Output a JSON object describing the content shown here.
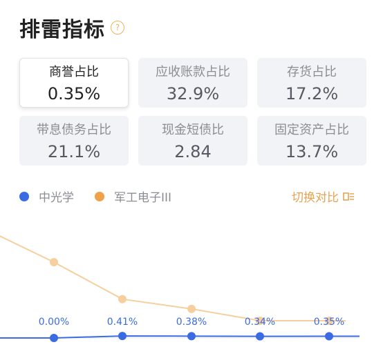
{
  "header": {
    "title": "排雷指标",
    "help_icon": "?"
  },
  "metrics": [
    {
      "label": "商誉占比",
      "value": "0.35%",
      "active": true
    },
    {
      "label": "应收账款占比",
      "value": "32.9%"
    },
    {
      "label": "存货占比",
      "value": "17.2%"
    },
    {
      "label": "带息债务占比",
      "value": "21.1%"
    },
    {
      "label": "现金短债比",
      "value": "2.84"
    },
    {
      "label": "固定资产占比",
      "value": "13.7%"
    }
  ],
  "legend": {
    "series_a": {
      "name": "中光学",
      "color": "#3a6be3"
    },
    "series_b": {
      "name": "军工电子III",
      "color": "#f0a24a"
    },
    "switch_label": "切换对比"
  },
  "chart_data": {
    "type": "line",
    "series": [
      {
        "name": "中光学",
        "values": [
          0,
          0.0,
          0.41,
          0.38,
          0.34,
          0.35
        ],
        "labels": [
          "",
          "0.00%",
          "0.41%",
          "0.38%",
          "0.34%",
          "0.35%"
        ]
      },
      {
        "name": "军工电子III",
        "values": [
          null,
          10.5,
          5.2,
          3.8,
          2.1,
          2.1
        ]
      }
    ]
  }
}
